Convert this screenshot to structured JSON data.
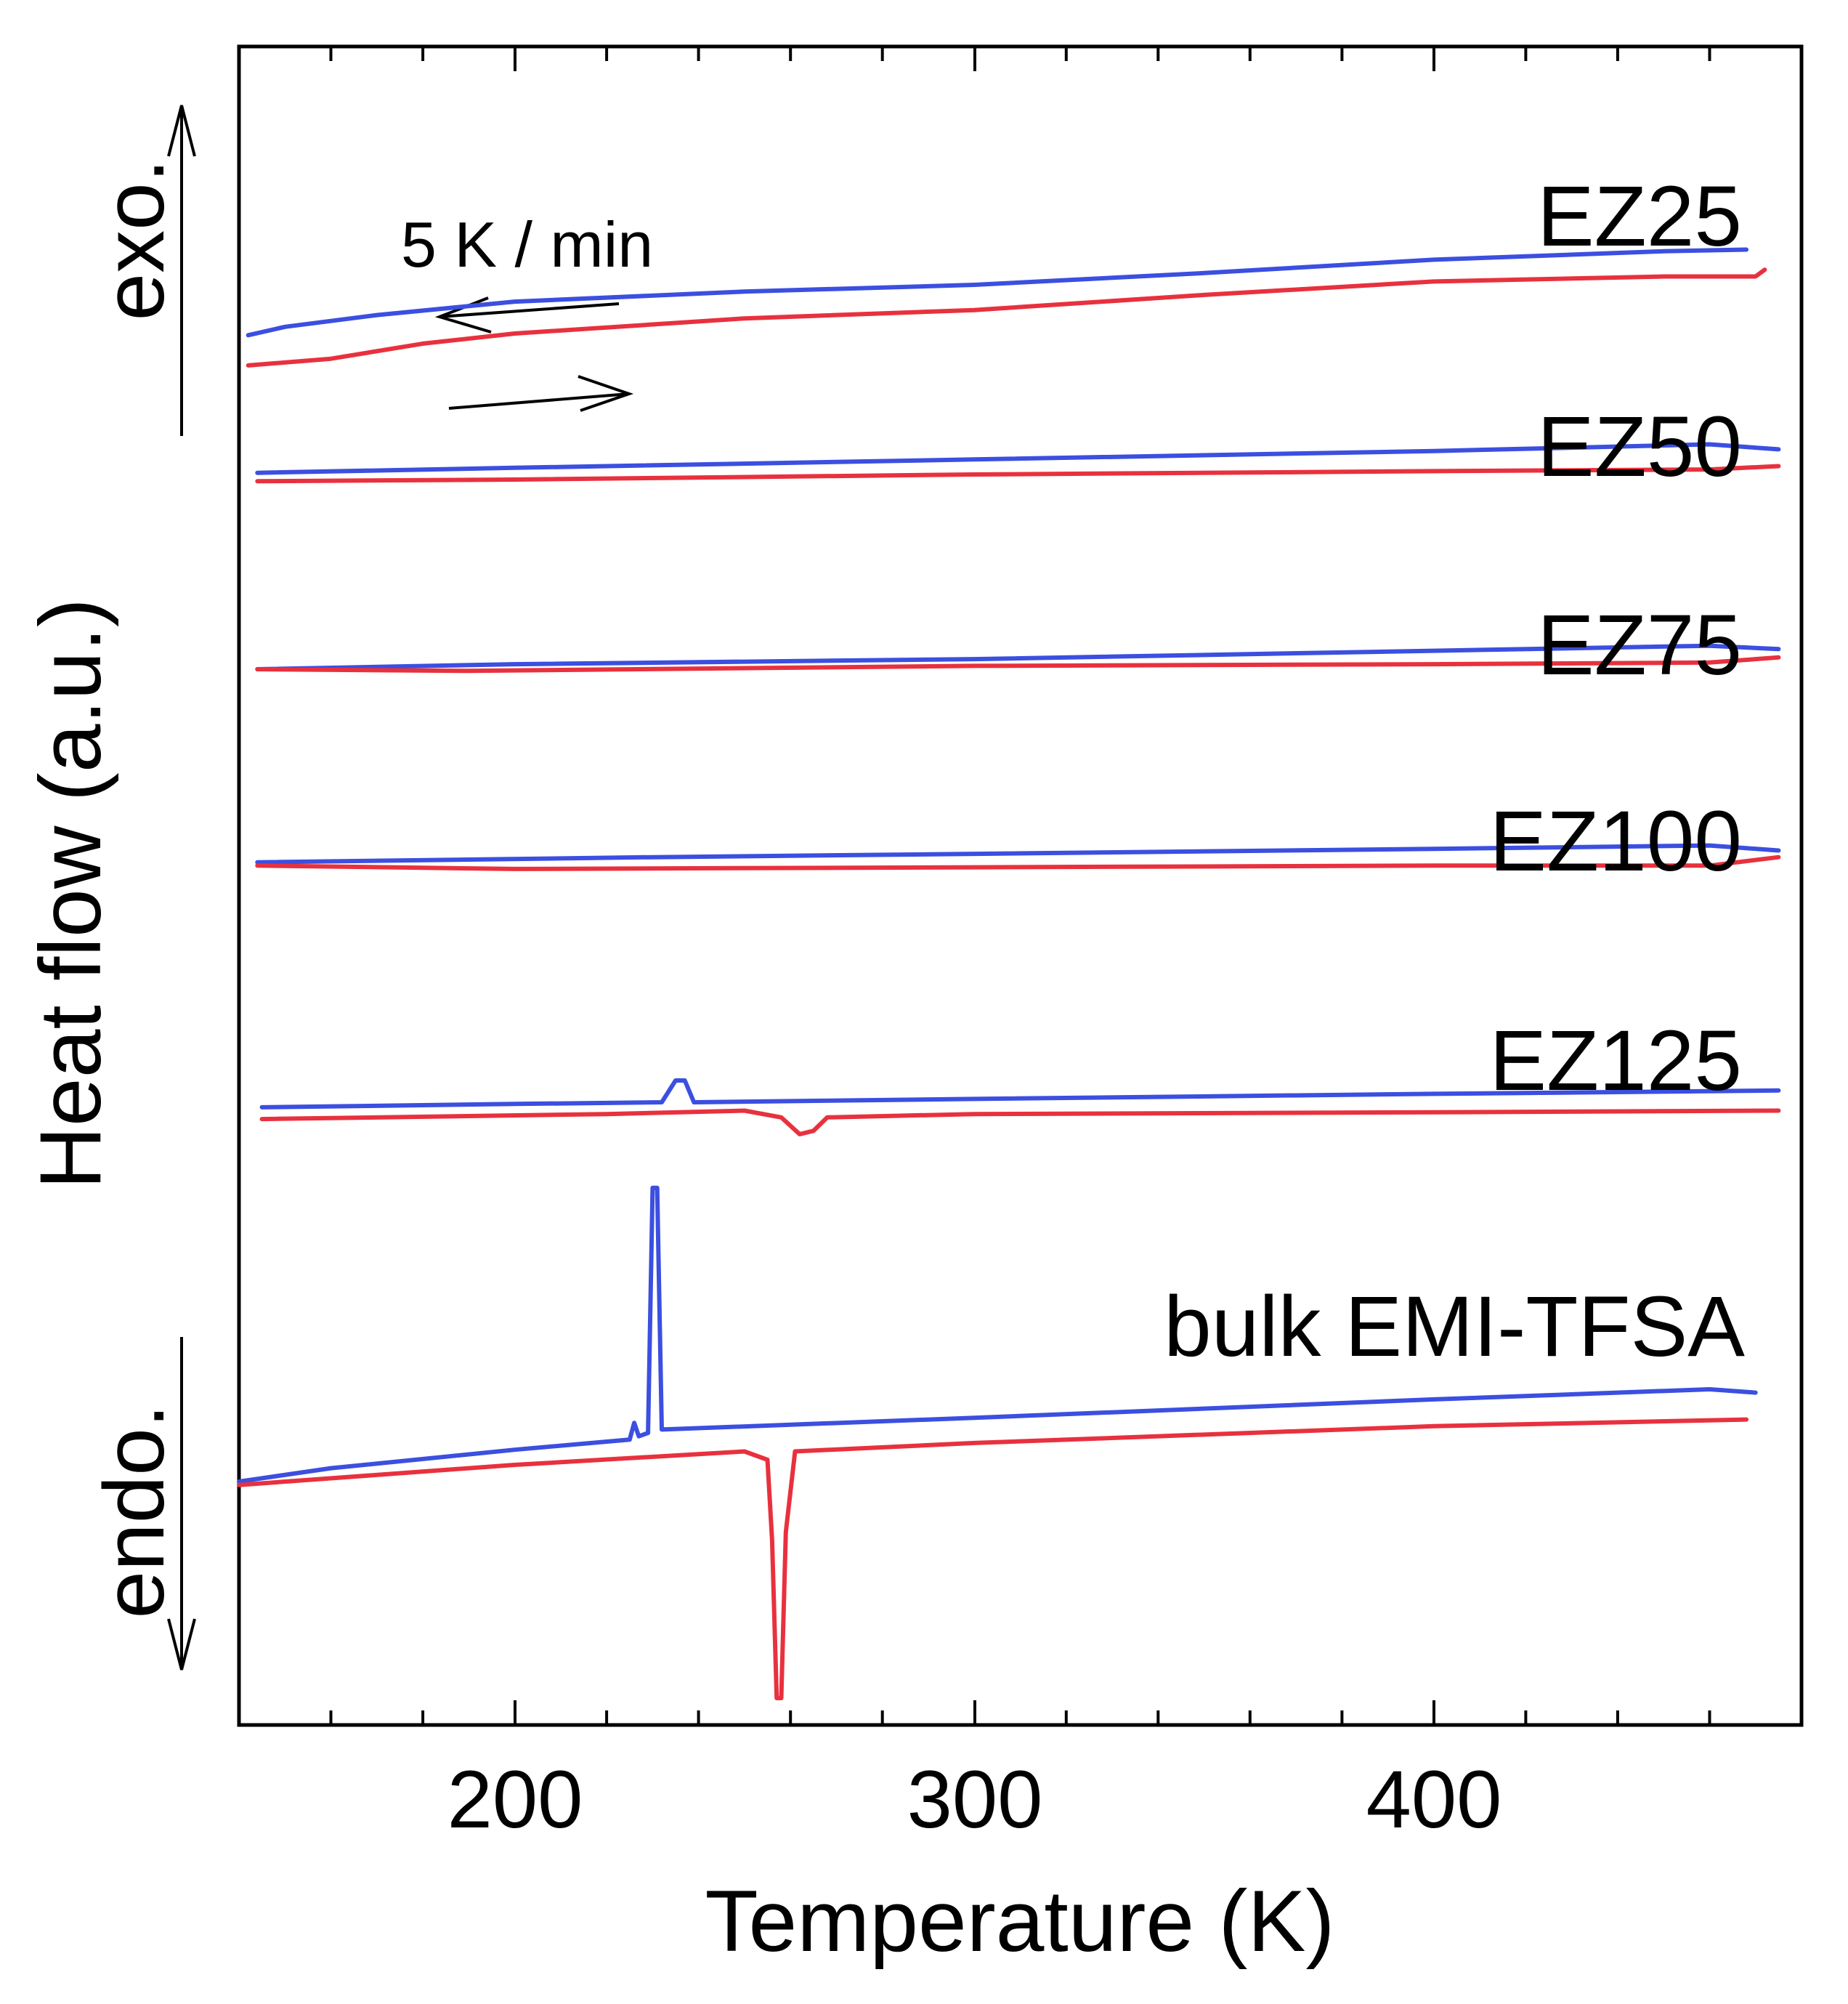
{
  "chart_data": {
    "type": "line",
    "title": "",
    "xlabel": "Temperature (K)",
    "ylabel": "Heat flow (a.u.)",
    "xlim": [
      140,
      480
    ],
    "xticks": [
      200,
      300,
      400
    ],
    "xtick_labels": [
      "200",
      "300",
      "400"
    ],
    "minor_xticks": [
      160,
      180,
      220,
      240,
      260,
      280,
      320,
      340,
      360,
      380,
      420,
      440,
      460
    ],
    "ylim": [
      0,
      100
    ],
    "grid": false,
    "colors": {
      "cooling": "#3b4fe0",
      "heating": "#e8313e",
      "axis": "#000000"
    },
    "side_labels": {
      "exo": "exo.",
      "endo": "endo."
    },
    "rate_annotation": "5 K / min",
    "groups": [
      {
        "name": "EZ25",
        "series": [
          {
            "name": "cooling",
            "color": "#3b4fe0",
            "points": [
              [
                142,
                82.8
              ],
              [
                150,
                83.3
              ],
              [
                170,
                84.0
              ],
              [
                200,
                84.8
              ],
              [
                250,
                85.4
              ],
              [
                300,
                85.8
              ],
              [
                350,
                86.5
              ],
              [
                400,
                87.3
              ],
              [
                450,
                87.8
              ],
              [
                468,
                87.9
              ]
            ]
          },
          {
            "name": "heating",
            "color": "#e8313e",
            "points": [
              [
                142,
                81.0
              ],
              [
                160,
                81.4
              ],
              [
                180,
                82.3
              ],
              [
                200,
                82.9
              ],
              [
                250,
                83.8
              ],
              [
                300,
                84.3
              ],
              [
                350,
                85.2
              ],
              [
                400,
                86.0
              ],
              [
                450,
                86.3
              ],
              [
                470,
                86.3
              ],
              [
                472,
                86.7
              ]
            ]
          }
        ]
      },
      {
        "name": "EZ50",
        "series": [
          {
            "name": "cooling",
            "color": "#3b4fe0",
            "points": [
              [
                144,
                74.6
              ],
              [
                200,
                74.9
              ],
              [
                300,
                75.4
              ],
              [
                400,
                75.9
              ],
              [
                460,
                76.3
              ],
              [
                475,
                76.0
              ]
            ]
          },
          {
            "name": "heating",
            "color": "#e8313e",
            "points": [
              [
                144,
                74.1
              ],
              [
                200,
                74.2
              ],
              [
                300,
                74.5
              ],
              [
                400,
                74.7
              ],
              [
                460,
                74.8
              ],
              [
                475,
                75.0
              ]
            ]
          }
        ]
      },
      {
        "name": "EZ75",
        "series": [
          {
            "name": "cooling",
            "color": "#3b4fe0",
            "points": [
              [
                144,
                62.9
              ],
              [
                200,
                63.2
              ],
              [
                300,
                63.5
              ],
              [
                400,
                64.0
              ],
              [
                460,
                64.3
              ],
              [
                475,
                64.1
              ]
            ]
          },
          {
            "name": "heating",
            "color": "#e8313e",
            "points": [
              [
                144,
                62.9
              ],
              [
                190,
                62.8
              ],
              [
                300,
                63.1
              ],
              [
                400,
                63.2
              ],
              [
                460,
                63.3
              ],
              [
                475,
                63.6
              ]
            ]
          }
        ]
      },
      {
        "name": "EZ100",
        "series": [
          {
            "name": "cooling",
            "color": "#3b4fe0",
            "points": [
              [
                144,
                51.4
              ],
              [
                230,
                51.7
              ],
              [
                300,
                51.9
              ],
              [
                400,
                52.2
              ],
              [
                460,
                52.4
              ],
              [
                475,
                52.1
              ]
            ]
          },
          {
            "name": "heating",
            "color": "#e8313e",
            "points": [
              [
                144,
                51.2
              ],
              [
                200,
                51.0
              ],
              [
                300,
                51.1
              ],
              [
                400,
                51.2
              ],
              [
                460,
                51.2
              ],
              [
                475,
                51.7
              ]
            ]
          }
        ]
      },
      {
        "name": "EZ125",
        "series": [
          {
            "name": "cooling",
            "color": "#3b4fe0",
            "points": [
              [
                145,
                36.8
              ],
              [
                200,
                37.0
              ],
              [
                232,
                37.1
              ],
              [
                235,
                38.4
              ],
              [
                237,
                38.4
              ],
              [
                239,
                37.1
              ],
              [
                300,
                37.3
              ],
              [
                400,
                37.6
              ],
              [
                475,
                37.8
              ]
            ]
          },
          {
            "name": "heating",
            "color": "#e8313e",
            "points": [
              [
                145,
                36.1
              ],
              [
                220,
                36.4
              ],
              [
                250,
                36.6
              ],
              [
                258,
                36.2
              ],
              [
                262,
                35.2
              ],
              [
                265,
                35.4
              ],
              [
                268,
                36.2
              ],
              [
                300,
                36.4
              ],
              [
                400,
                36.5
              ],
              [
                475,
                36.6
              ]
            ]
          }
        ]
      },
      {
        "name": "bulk EMI-TFSA",
        "series": [
          {
            "name": "cooling",
            "color": "#3b4fe0",
            "points": [
              [
                140,
                14.5
              ],
              [
                160,
                15.3
              ],
              [
                200,
                16.4
              ],
              [
                225,
                17.0
              ],
              [
                226,
                18.0
              ],
              [
                227,
                17.2
              ],
              [
                229,
                17.4
              ],
              [
                230,
                32.0
              ],
              [
                231,
                32.0
              ],
              [
                232,
                17.6
              ],
              [
                300,
                18.3
              ],
              [
                400,
                19.4
              ],
              [
                460,
                20.0
              ],
              [
                470,
                19.8
              ]
            ]
          },
          {
            "name": "heating",
            "color": "#e8313e",
            "points": [
              [
                140,
                14.3
              ],
              [
                200,
                15.5
              ],
              [
                250,
                16.3
              ],
              [
                255,
                15.8
              ],
              [
                256,
                11.0
              ],
              [
                257,
                1.6
              ],
              [
                258,
                1.6
              ],
              [
                259,
                11.5
              ],
              [
                261,
                16.3
              ],
              [
                300,
                16.8
              ],
              [
                400,
                17.8
              ],
              [
                468,
                18.2
              ]
            ]
          }
        ]
      }
    ]
  }
}
